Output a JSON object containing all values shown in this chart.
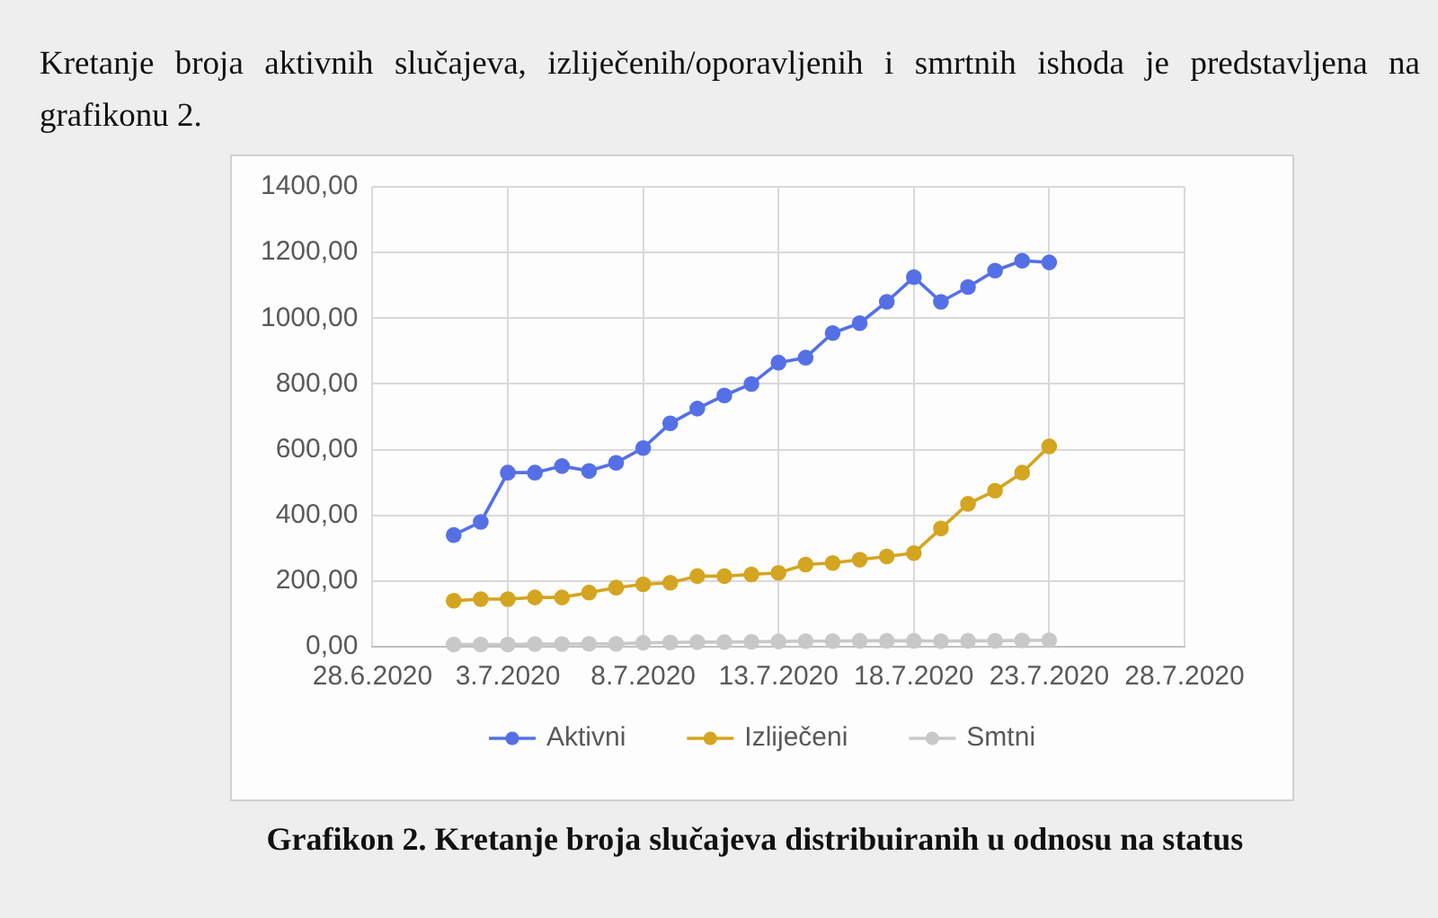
{
  "chart_data": {
    "type": "line",
    "title": "Grafikon 2. Kretanje broja slučajeva distribuiranih u odnosu na status",
    "annotations": [
      "Kretanje broja aktivnih slučajeva, izliječenih/oporavljenih i smrtnih ishoda je predstavljena na grafikonu 2."
    ],
    "x": [
      "2020-07-01",
      "2020-07-02",
      "2020-07-03",
      "2020-07-04",
      "2020-07-05",
      "2020-07-06",
      "2020-07-07",
      "2020-07-08",
      "2020-07-09",
      "2020-07-10",
      "2020-07-11",
      "2020-07-12",
      "2020-07-13",
      "2020-07-14",
      "2020-07-15",
      "2020-07-16",
      "2020-07-17",
      "2020-07-18",
      "2020-07-19",
      "2020-07-20",
      "2020-07-21",
      "2020-07-22",
      "2020-07-23"
    ],
    "series": [
      {
        "name": "Aktivni",
        "color": "#5570e6",
        "values": [
          340,
          380,
          530,
          530,
          550,
          535,
          560,
          605,
          680,
          725,
          765,
          800,
          865,
          880,
          955,
          985,
          1050,
          1125,
          1050,
          1095,
          1145,
          1175,
          1170
        ]
      },
      {
        "name": "Izliječeni",
        "color": "#d4a521",
        "values": [
          140,
          145,
          145,
          150,
          150,
          165,
          180,
          190,
          195,
          215,
          215,
          220,
          225,
          250,
          255,
          265,
          275,
          285,
          360,
          435,
          475,
          530,
          610
        ]
      },
      {
        "name": "Smtni",
        "color": "#c8c8c8",
        "values": [
          7,
          7,
          7,
          8,
          8,
          9,
          9,
          12,
          13,
          14,
          14,
          15,
          16,
          17,
          17,
          18,
          18,
          18,
          17,
          18,
          18,
          19,
          20
        ]
      }
    ],
    "xlim": [
      "2020-06-28",
      "2020-07-28"
    ],
    "xticks": [
      {
        "value": "2020-06-28",
        "label": "28.6.2020"
      },
      {
        "value": "2020-07-03",
        "label": "3.7.2020"
      },
      {
        "value": "2020-07-08",
        "label": "8.7.2020"
      },
      {
        "value": "2020-07-13",
        "label": "13.7.2020"
      },
      {
        "value": "2020-07-18",
        "label": "18.7.2020"
      },
      {
        "value": "2020-07-23",
        "label": "23.7.2020"
      },
      {
        "value": "2020-07-28",
        "label": "28.7.2020"
      }
    ],
    "ylim": [
      0,
      1400
    ],
    "yticks": [
      {
        "value": 0,
        "label": "0,00"
      },
      {
        "value": 200,
        "label": "200,00"
      },
      {
        "value": 400,
        "label": "400,00"
      },
      {
        "value": 600,
        "label": "600,00"
      },
      {
        "value": 800,
        "label": "800,00"
      },
      {
        "value": 1000,
        "label": "1000,00"
      },
      {
        "value": 1200,
        "label": "1200,00"
      },
      {
        "value": 1400,
        "label": "1400,00"
      }
    ],
    "grid": true,
    "legend": "bottom",
    "marker": "circle",
    "line_style": "solid"
  }
}
